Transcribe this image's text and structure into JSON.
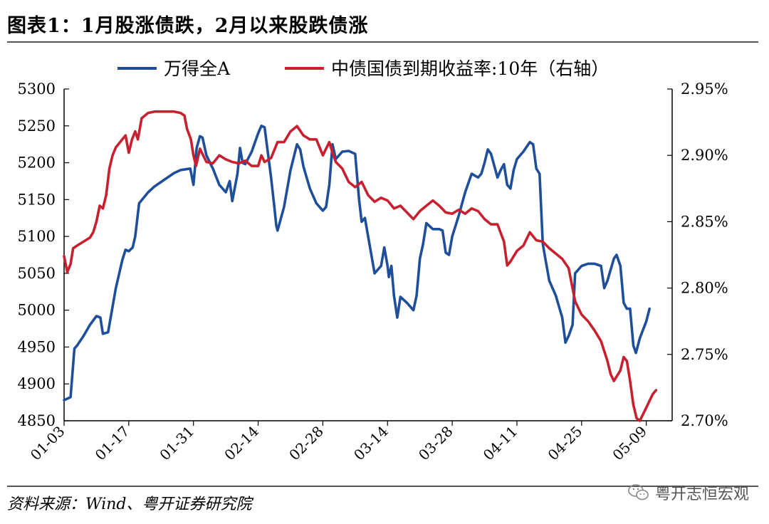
{
  "title": "图表1：1月股涨债跌，2月以来股跌债涨",
  "source": "资料来源：Wind、粤开证券研究院",
  "watermark": "粤开志恒宏观",
  "watermark_icon": "wechat-icon",
  "colors": {
    "series1": "#1F4E9A",
    "series2": "#C8202F",
    "axis": "#000000"
  },
  "chart_data": {
    "type": "line",
    "legend_position": "top-center",
    "grid": false,
    "x_ticks": [
      "01-03",
      "01-17",
      "01-31",
      "02-14",
      "02-28",
      "03-14",
      "03-28",
      "04-11",
      "04-25",
      "05-09"
    ],
    "x_tick_index": [
      0,
      10,
      20,
      30,
      40,
      50,
      60,
      70,
      80,
      90
    ],
    "x_count": 95,
    "y_left": {
      "min": 4850,
      "max": 5300,
      "ticks": [
        "4850",
        "4900",
        "4950",
        "5000",
        "5050",
        "5100",
        "5150",
        "5200",
        "5250",
        "5300"
      ]
    },
    "y_right": {
      "min": 2.7,
      "max": 2.95,
      "ticks": [
        "2.70%",
        "2.75%",
        "2.80%",
        "2.85%",
        "2.90%",
        "2.95%"
      ]
    },
    "series": [
      {
        "name": "万得全A",
        "axis": "left",
        "points": [
          [
            0,
            4878
          ],
          [
            1,
            4882
          ],
          [
            1.6,
            4948
          ],
          [
            2,
            4952
          ],
          [
            3,
            4965
          ],
          [
            4,
            4980
          ],
          [
            5,
            4992
          ],
          [
            5.6,
            4990
          ],
          [
            6,
            4968
          ],
          [
            6.8,
            4970
          ],
          [
            8,
            5030
          ],
          [
            9,
            5068
          ],
          [
            9.5,
            5082
          ],
          [
            10,
            5080
          ],
          [
            10.6,
            5085
          ],
          [
            11,
            5100
          ],
          [
            11.6,
            5145
          ],
          [
            13,
            5160
          ],
          [
            14,
            5168
          ],
          [
            15,
            5174
          ],
          [
            16,
            5180
          ],
          [
            17,
            5186
          ],
          [
            18,
            5190
          ],
          [
            19.5,
            5192
          ],
          [
            20,
            5170
          ],
          [
            20.5,
            5220
          ],
          [
            21,
            5236
          ],
          [
            21.4,
            5234
          ],
          [
            22,
            5210
          ],
          [
            23,
            5192
          ],
          [
            24,
            5170
          ],
          [
            25,
            5160
          ],
          [
            25.6,
            5175
          ],
          [
            26,
            5148
          ],
          [
            26.8,
            5185
          ],
          [
            27.2,
            5220
          ],
          [
            27.6,
            5200
          ],
          [
            28,
            5198
          ],
          [
            29,
            5215
          ],
          [
            30,
            5240
          ],
          [
            30.5,
            5250
          ],
          [
            31,
            5248
          ],
          [
            32,
            5180
          ],
          [
            32.5,
            5140
          ],
          [
            32.8,
            5115
          ],
          [
            33,
            5108
          ],
          [
            34,
            5140
          ],
          [
            35,
            5190
          ],
          [
            36,
            5225
          ],
          [
            36.5,
            5218
          ],
          [
            37,
            5195
          ],
          [
            38,
            5165
          ],
          [
            39,
            5145
          ],
          [
            40,
            5135
          ],
          [
            40.5,
            5140
          ],
          [
            41,
            5170
          ],
          [
            41.5,
            5225
          ],
          [
            42,
            5205
          ],
          [
            43,
            5215
          ],
          [
            44,
            5216
          ],
          [
            45,
            5212
          ],
          [
            45.6,
            5150
          ],
          [
            46,
            5120
          ],
          [
            46.5,
            5125
          ],
          [
            47,
            5100
          ],
          [
            48,
            5050
          ],
          [
            49,
            5060
          ],
          [
            49.5,
            5085
          ],
          [
            50,
            5060
          ],
          [
            50.2,
            5045
          ],
          [
            50.6,
            5060
          ],
          [
            51,
            5020
          ],
          [
            51.5,
            4990
          ],
          [
            52,
            5018
          ],
          [
            53,
            5010
          ],
          [
            54,
            5000
          ],
          [
            54.5,
            5020
          ],
          [
            55,
            5070
          ],
          [
            55.5,
            5090
          ],
          [
            56,
            5118
          ],
          [
            57,
            5110
          ],
          [
            58,
            5110
          ],
          [
            58.5,
            5108
          ],
          [
            59,
            5078
          ],
          [
            59.5,
            5075
          ],
          [
            60,
            5100
          ],
          [
            61,
            5128
          ],
          [
            62,
            5160
          ],
          [
            63,
            5185
          ],
          [
            64,
            5180
          ],
          [
            64.5,
            5185
          ],
          [
            65,
            5200
          ],
          [
            65.5,
            5218
          ],
          [
            66,
            5212
          ],
          [
            67,
            5180
          ],
          [
            67.5,
            5190
          ],
          [
            68,
            5198
          ],
          [
            68.5,
            5170
          ],
          [
            69,
            5165
          ],
          [
            69.5,
            5190
          ],
          [
            70,
            5205
          ],
          [
            71,
            5215
          ],
          [
            72,
            5228
          ],
          [
            72.5,
            5225
          ],
          [
            73,
            5192
          ],
          [
            73.5,
            5185
          ],
          [
            74,
            5090
          ],
          [
            74.5,
            5065
          ],
          [
            75,
            5040
          ],
          [
            76,
            5020
          ],
          [
            77,
            4990
          ],
          [
            77.5,
            4956
          ],
          [
            78,
            4965
          ],
          [
            78.6,
            4980
          ],
          [
            79,
            5050
          ],
          [
            80,
            5060
          ],
          [
            81,
            5063
          ],
          [
            82,
            5063
          ],
          [
            83,
            5060
          ],
          [
            83.5,
            5030
          ],
          [
            84,
            5040
          ],
          [
            85,
            5070
          ],
          [
            85.4,
            5075
          ],
          [
            86,
            5060
          ],
          [
            86.5,
            5010
          ],
          [
            87,
            5002
          ],
          [
            87.5,
            5002
          ],
          [
            88,
            4952
          ],
          [
            88.4,
            4942
          ],
          [
            89,
            4962
          ],
          [
            90,
            4985
          ],
          [
            90.5,
            5002
          ]
        ]
      },
      {
        "name": "中债国债到期收益率:10年（右轴）",
        "axis": "right",
        "points": [
          [
            0,
            2.824
          ],
          [
            0.5,
            2.812
          ],
          [
            1,
            2.818
          ],
          [
            1.4,
            2.83
          ],
          [
            2,
            2.832
          ],
          [
            3,
            2.835
          ],
          [
            4,
            2.838
          ],
          [
            4.5,
            2.842
          ],
          [
            5,
            2.85
          ],
          [
            5.5,
            2.862
          ],
          [
            6,
            2.86
          ],
          [
            6.5,
            2.87
          ],
          [
            7,
            2.89
          ],
          [
            7.5,
            2.9
          ],
          [
            8,
            2.906
          ],
          [
            9,
            2.912
          ],
          [
            9.5,
            2.915
          ],
          [
            10,
            2.902
          ],
          [
            10.5,
            2.912
          ],
          [
            11,
            2.918
          ],
          [
            11.4,
            2.912
          ],
          [
            12,
            2.928
          ],
          [
            13,
            2.932
          ],
          [
            14,
            2.933
          ],
          [
            15,
            2.933
          ],
          [
            16,
            2.933
          ],
          [
            17,
            2.933
          ],
          [
            18,
            2.932
          ],
          [
            18.6,
            2.93
          ],
          [
            19,
            2.92
          ],
          [
            19.6,
            2.912
          ],
          [
            20,
            2.9
          ],
          [
            20.4,
            2.892
          ],
          [
            21,
            2.905
          ],
          [
            22,
            2.895
          ],
          [
            23,
            2.894
          ],
          [
            24,
            2.9
          ],
          [
            25,
            2.897
          ],
          [
            26,
            2.895
          ],
          [
            27,
            2.894
          ],
          [
            28,
            2.896
          ],
          [
            29,
            2.892
          ],
          [
            30,
            2.892
          ],
          [
            30.5,
            2.9
          ],
          [
            31,
            2.895
          ],
          [
            32,
            2.898
          ],
          [
            33,
            2.91
          ],
          [
            34,
            2.91
          ],
          [
            35,
            2.918
          ],
          [
            36,
            2.922
          ],
          [
            37,
            2.915
          ],
          [
            38,
            2.912
          ],
          [
            39,
            2.912
          ],
          [
            40,
            2.9
          ],
          [
            41,
            2.91
          ],
          [
            41.5,
            2.902
          ],
          [
            42,
            2.895
          ],
          [
            43,
            2.89
          ],
          [
            44,
            2.88
          ],
          [
            45,
            2.876
          ],
          [
            46,
            2.88
          ],
          [
            47,
            2.87
          ],
          [
            48,
            2.865
          ],
          [
            49,
            2.868
          ],
          [
            50,
            2.866
          ],
          [
            51,
            2.86
          ],
          [
            52,
            2.862
          ],
          [
            53,
            2.857
          ],
          [
            54,
            2.852
          ],
          [
            55,
            2.858
          ],
          [
            56,
            2.862
          ],
          [
            57,
            2.866
          ],
          [
            58,
            2.862
          ],
          [
            59,
            2.857
          ],
          [
            60,
            2.856
          ],
          [
            61,
            2.859
          ],
          [
            62,
            2.856
          ],
          [
            63,
            2.86
          ],
          [
            64,
            2.858
          ],
          [
            65,
            2.852
          ],
          [
            66,
            2.848
          ],
          [
            67,
            2.848
          ],
          [
            68,
            2.835
          ],
          [
            68.5,
            2.817
          ],
          [
            69,
            2.82
          ],
          [
            70,
            2.828
          ],
          [
            71,
            2.832
          ],
          [
            72,
            2.842
          ],
          [
            73,
            2.836
          ],
          [
            74,
            2.835
          ],
          [
            75,
            2.83
          ],
          [
            76,
            2.826
          ],
          [
            77,
            2.822
          ],
          [
            78,
            2.815
          ],
          [
            79,
            2.79
          ],
          [
            80,
            2.78
          ],
          [
            81,
            2.775
          ],
          [
            82,
            2.768
          ],
          [
            83,
            2.76
          ],
          [
            84,
            2.745
          ],
          [
            84.5,
            2.735
          ],
          [
            85,
            2.73
          ],
          [
            86,
            2.738
          ],
          [
            86.5,
            2.748
          ],
          [
            87,
            2.745
          ],
          [
            87.5,
            2.73
          ],
          [
            88,
            2.712
          ],
          [
            88.5,
            2.702
          ],
          [
            89,
            2.7
          ],
          [
            90,
            2.71
          ],
          [
            91,
            2.72
          ],
          [
            91.5,
            2.723
          ]
        ]
      }
    ]
  }
}
